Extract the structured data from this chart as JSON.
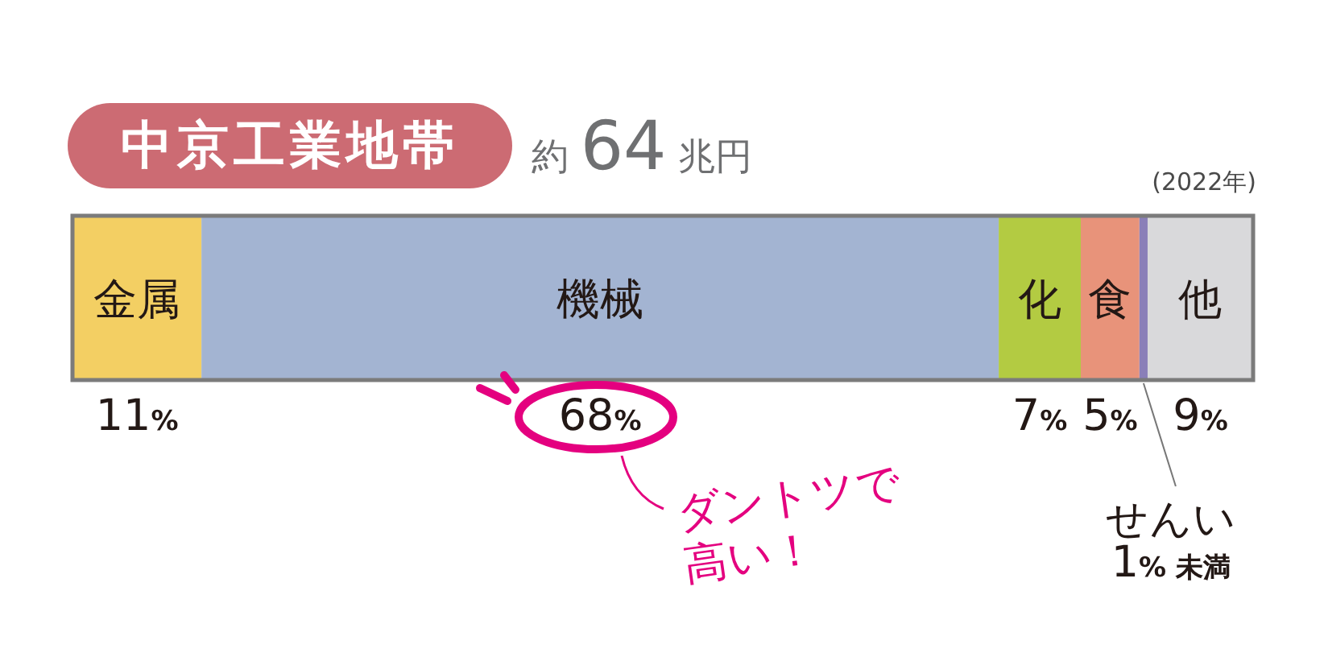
{
  "chart_data": {
    "type": "bar",
    "title": "中京工業地帯",
    "subtitle": "約 64 兆円",
    "orientation": "horizontal",
    "stacked": true,
    "tick_labels": false,
    "categories": [
      null
    ],
    "xlim": [
      0,
      100.7
    ],
    "series": [
      {
        "name": "金属",
        "color": "#f3cf63",
        "values": [
          11
        ],
        "value_labels": [
          "11%"
        ]
      },
      {
        "name": "機械",
        "color": "#a3b4d2",
        "values": [
          68
        ],
        "value_labels": [
          "68%"
        ]
      },
      {
        "name": "化",
        "color": "#b3cb42",
        "values": [
          7
        ],
        "value_labels": [
          "7%"
        ]
      },
      {
        "name": "食",
        "color": "#e8937a",
        "values": [
          5
        ],
        "value_labels": [
          "5%"
        ]
      },
      {
        "name": "せんい",
        "color": "#8a7fb8",
        "values": [
          0.7
        ],
        "value_labels": [
          "1% 未満"
        ]
      },
      {
        "name": "他",
        "color": "#d9d9db",
        "values": [
          9
        ],
        "value_labels": [
          "9%"
        ]
      }
    ],
    "annotations": [
      "(2022年)",
      "ダントツで高い！"
    ]
  }
}
